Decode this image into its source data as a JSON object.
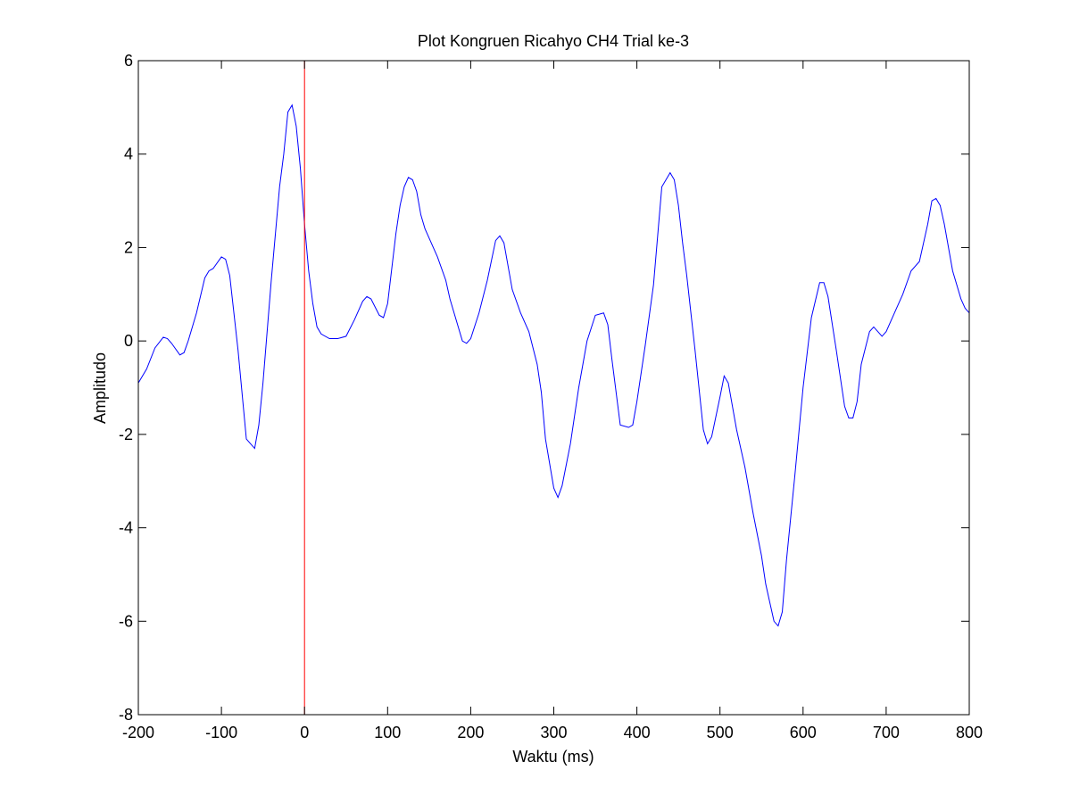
{
  "chart_data": {
    "type": "line",
    "title": "Plot Kongruen Ricahyo CH4 Trial ke-3",
    "xlabel": "Waktu (ms)",
    "ylabel": "Amplitudo",
    "xlim": [
      -200,
      800
    ],
    "ylim": [
      -8,
      6
    ],
    "xticks": [
      -200,
      -100,
      0,
      100,
      200,
      300,
      400,
      500,
      600,
      700,
      800
    ],
    "xtick_labels": [
      "-200",
      "-100",
      "0",
      "100",
      "200",
      "300",
      "400",
      "500",
      "600",
      "700",
      "800"
    ],
    "yticks": [
      6,
      4,
      2,
      0,
      -2,
      -4,
      -6,
      -8
    ],
    "ytick_labels": [
      "6",
      "4",
      "2",
      "0",
      "-2",
      "-4",
      "-6",
      "-8"
    ],
    "grid": false,
    "series": [
      {
        "color": "#0000ff",
        "x": [
          -200,
          -190,
          -180,
          -170,
          -165,
          -160,
          -150,
          -145,
          -140,
          -130,
          -120,
          -115,
          -110,
          -100,
          -95,
          -90,
          -80,
          -70,
          -60,
          -55,
          -50,
          -40,
          -30,
          -25,
          -20,
          -15,
          -10,
          -5,
          0,
          5,
          10,
          15,
          20,
          30,
          40,
          50,
          60,
          70,
          75,
          80,
          90,
          95,
          100,
          110,
          115,
          120,
          125,
          130,
          135,
          140,
          145,
          150,
          160,
          170,
          175,
          180,
          190,
          195,
          200,
          210,
          220,
          230,
          235,
          240,
          250,
          260,
          270,
          280,
          285,
          290,
          300,
          305,
          310,
          320,
          330,
          340,
          350,
          360,
          365,
          370,
          380,
          390,
          395,
          400,
          410,
          420,
          430,
          440,
          445,
          450,
          455,
          460,
          470,
          480,
          485,
          490,
          500,
          505,
          510,
          515,
          520,
          530,
          540,
          550,
          555,
          560,
          565,
          570,
          575,
          580,
          590,
          600,
          610,
          620,
          625,
          630,
          640,
          650,
          655,
          660,
          665,
          670,
          680,
          685,
          690,
          695,
          700,
          710,
          720,
          730,
          740,
          750,
          755,
          760,
          765,
          770,
          780,
          790,
          795,
          800
        ],
        "y": [
          -0.9,
          -0.6,
          -0.15,
          0.08,
          0.05,
          -0.05,
          -0.3,
          -0.25,
          0.0,
          0.6,
          1.35,
          1.5,
          1.55,
          1.8,
          1.75,
          1.4,
          -0.2,
          -2.1,
          -2.3,
          -1.8,
          -0.9,
          1.3,
          3.3,
          4.0,
          4.9,
          5.05,
          4.6,
          3.7,
          2.5,
          1.5,
          0.8,
          0.3,
          0.15,
          0.05,
          0.05,
          0.1,
          0.45,
          0.85,
          0.95,
          0.9,
          0.55,
          0.5,
          0.8,
          2.3,
          2.9,
          3.3,
          3.5,
          3.45,
          3.2,
          2.7,
          2.4,
          2.2,
          1.8,
          1.3,
          0.9,
          0.6,
          0.0,
          -0.05,
          0.05,
          0.6,
          1.3,
          2.15,
          2.25,
          2.1,
          1.1,
          0.6,
          0.2,
          -0.5,
          -1.1,
          -2.1,
          -3.15,
          -3.35,
          -3.1,
          -2.2,
          -1.0,
          0.0,
          0.55,
          0.6,
          0.35,
          -0.4,
          -1.8,
          -1.85,
          -1.8,
          -1.3,
          -0.1,
          1.2,
          3.3,
          3.6,
          3.45,
          2.9,
          2.1,
          1.4,
          -0.2,
          -1.9,
          -2.2,
          -2.05,
          -1.2,
          -0.75,
          -0.9,
          -1.4,
          -1.9,
          -2.7,
          -3.7,
          -4.6,
          -5.2,
          -5.6,
          -6.0,
          -6.1,
          -5.8,
          -4.7,
          -2.9,
          -1.0,
          0.5,
          1.25,
          1.25,
          0.95,
          -0.2,
          -1.4,
          -1.65,
          -1.65,
          -1.3,
          -0.5,
          0.2,
          0.3,
          0.2,
          0.1,
          0.2,
          0.6,
          1.0,
          1.5,
          1.7,
          2.5,
          3.0,
          3.05,
          2.9,
          2.5,
          1.5,
          0.9,
          0.7,
          0.6
        ]
      }
    ],
    "annotations": [
      {
        "kind": "vertical-line",
        "x": 0,
        "color": "#ff0000"
      }
    ]
  }
}
